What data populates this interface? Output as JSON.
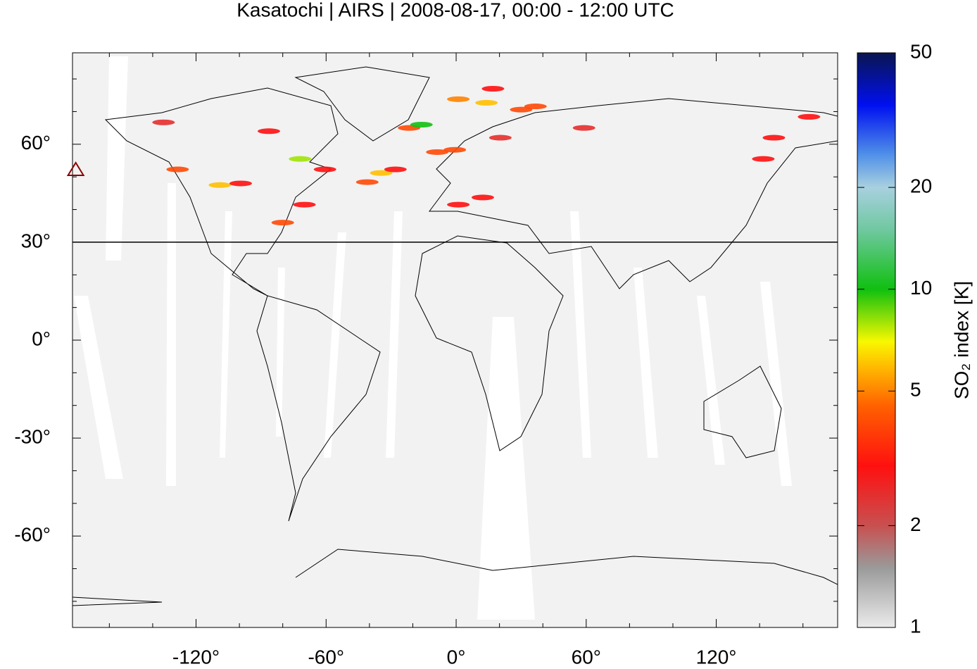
{
  "chart_data": {
    "type": "map",
    "title": "Kasatochi | AIRS | 2008-08-17, 00:00 - 12:00 UTC",
    "xlim": [
      -177,
      176
    ],
    "ylim": [
      -88,
      88
    ],
    "xticks": [
      {
        "value": -120,
        "label": "-120°"
      },
      {
        "value": -60,
        "label": "-60°"
      },
      {
        "value": 0,
        "label": "0°"
      },
      {
        "value": 60,
        "label": "60°"
      },
      {
        "value": 120,
        "label": "120°"
      }
    ],
    "yticks": [
      {
        "value": 60,
        "label": "60°"
      },
      {
        "value": 30,
        "label": "30°"
      },
      {
        "value": 0,
        "label": "0°"
      },
      {
        "value": -30,
        "label": "-30°"
      },
      {
        "value": -60,
        "label": "-60°"
      }
    ],
    "xminorticks": [
      -160,
      -140,
      -100,
      -80,
      -40,
      -20,
      20,
      40,
      80,
      100,
      140,
      160
    ],
    "yminorticks": [
      80,
      70,
      50,
      40,
      20,
      10,
      -10,
      -20,
      -40,
      -50,
      -70,
      -80
    ],
    "reference_line": 30,
    "marker": {
      "x": -175.5,
      "y": 52.2,
      "color": "#8b0000"
    },
    "colorbar": {
      "label": "SO₂ index [K]",
      "log": true,
      "zlim": [
        1,
        50
      ],
      "ticks": [
        1,
        2,
        5,
        10,
        20,
        50
      ],
      "colormap": [
        {
          "value": 1,
          "color": "#ebebeb"
        },
        {
          "value": 1.5,
          "color": "#9a9a9a"
        },
        {
          "value": 2,
          "color": "#c85050"
        },
        {
          "value": 3,
          "color": "#ff1010"
        },
        {
          "value": 4.5,
          "color": "#ff6000"
        },
        {
          "value": 6,
          "color": "#ffc000"
        },
        {
          "value": 7,
          "color": "#f8f800"
        },
        {
          "value": 10,
          "color": "#10c010"
        },
        {
          "value": 15,
          "color": "#70c8a0"
        },
        {
          "value": 20,
          "color": "#a8d0e0"
        },
        {
          "value": 25,
          "color": "#5090e8"
        },
        {
          "value": 35,
          "color": "#0010f0"
        },
        {
          "value": 50,
          "color": "#0a1550"
        }
      ]
    },
    "plume": {
      "x": [
        -128.5,
        -109,
        -99.4,
        -80,
        -70,
        -135,
        -86.4,
        -72,
        -34.6,
        -41,
        -28,
        -21.7,
        -16,
        -8.7,
        1,
        14,
        30,
        17,
        1,
        12.3,
        20.4,
        59,
        146.6,
        162.8,
        141.7,
        -0.6,
        36.6,
        -60.5
      ],
      "y": [
        52.3,
        47.5,
        48,
        36,
        41.5,
        66.7,
        64,
        55.5,
        51.2,
        48.4,
        52.3,
        65,
        66,
        57.6,
        73.8,
        72.7,
        70.6,
        77,
        41.5,
        43.7,
        62,
        65,
        62,
        68.4,
        55.5,
        58.3,
        71.6,
        52.3
      ],
      "values": [
        4,
        6,
        3,
        4,
        3,
        2.5,
        3,
        8,
        6,
        4,
        3,
        4,
        10,
        4,
        5,
        6,
        4,
        3,
        3,
        3,
        2.5,
        2.5,
        3,
        3,
        3,
        4,
        4,
        3
      ]
    }
  }
}
